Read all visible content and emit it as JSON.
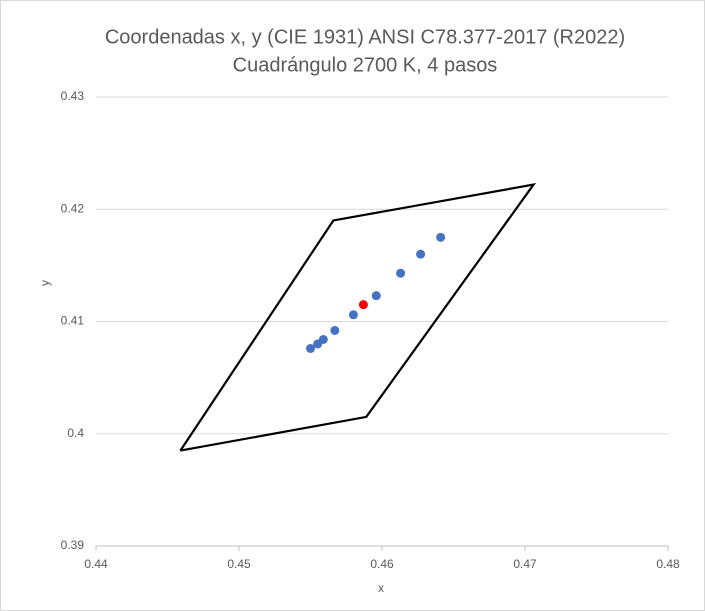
{
  "chart_data": {
    "type": "scatter",
    "title": "Coordenadas x, y (CIE 1931) ANSI C78.377-2017 (R2022)",
    "subtitle": "Cuadrángulo 2700 K, 4 pasos",
    "x_label": "x",
    "y_label": "y",
    "xlim": [
      0.44,
      0.48
    ],
    "xticks": [
      0.44,
      0.45,
      0.46,
      0.47,
      0.48
    ],
    "ylim": [
      0.39,
      0.43
    ],
    "yticks": [
      0.39,
      0.4,
      0.41,
      0.42,
      0.43
    ],
    "grid": true,
    "series": [
      {
        "mode": "line",
        "color": "#000000",
        "x": [
          0.4459,
          0.4566,
          0.4706,
          0.4589,
          0.4459
        ],
        "values": [
          0.3985,
          0.419,
          0.4222,
          0.4015,
          0.3985
        ]
      },
      {
        "mode": "markers",
        "color": "#4472c4",
        "x": [
          0.455,
          0.4555,
          0.4559,
          0.4567,
          0.458,
          0.4596,
          0.4613,
          0.4627,
          0.4641
        ],
        "values": [
          0.4076,
          0.408,
          0.4084,
          0.4092,
          0.4106,
          0.4123,
          0.4143,
          0.416,
          0.4175
        ]
      },
      {
        "mode": "markers",
        "color": "#ff0000",
        "x": [
          0.4587
        ],
        "values": [
          0.4115
        ]
      }
    ]
  }
}
